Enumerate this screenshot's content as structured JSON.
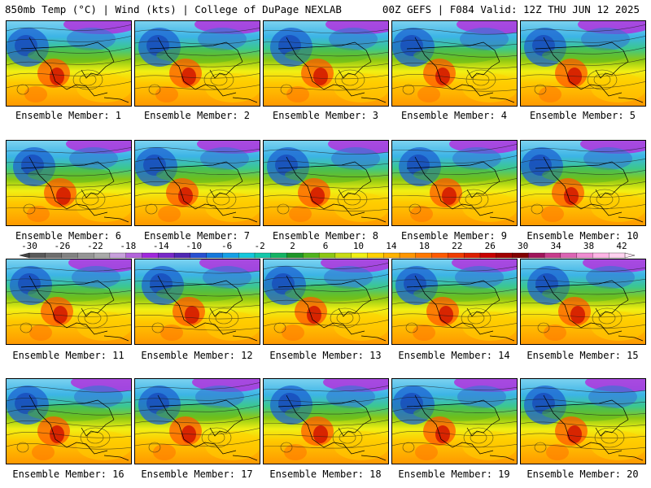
{
  "header": {
    "left": "850mb Temp (°C) | Wind (kts) | College of DuPage NEXLAB",
    "right": "00Z GEFS | F084 Valid: 12Z THU JUN 12 2025"
  },
  "panels": [
    {
      "label": "Ensemble Member: 1"
    },
    {
      "label": "Ensemble Member: 2"
    },
    {
      "label": "Ensemble Member: 3"
    },
    {
      "label": "Ensemble Member: 4"
    },
    {
      "label": "Ensemble Member: 5"
    },
    {
      "label": "Ensemble Member: 6"
    },
    {
      "label": "Ensemble Member: 7"
    },
    {
      "label": "Ensemble Member: 8"
    },
    {
      "label": "Ensemble Member: 9"
    },
    {
      "label": "Ensemble Member: 10"
    },
    {
      "label": "Ensemble Member: 11"
    },
    {
      "label": "Ensemble Member: 12"
    },
    {
      "label": "Ensemble Member: 13"
    },
    {
      "label": "Ensemble Member: 14"
    },
    {
      "label": "Ensemble Member: 15"
    },
    {
      "label": "Ensemble Member: 16"
    },
    {
      "label": "Ensemble Member: 17"
    },
    {
      "label": "Ensemble Member: 18"
    },
    {
      "label": "Ensemble Member: 19"
    },
    {
      "label": "Ensemble Member: 20"
    }
  ],
  "colorbar": {
    "labels": [
      "-30",
      "-26",
      "-22",
      "-18",
      "-14",
      "-10",
      "-6",
      "-2",
      "2",
      "6",
      "10",
      "14",
      "18",
      "22",
      "26",
      "30",
      "34",
      "38",
      "42"
    ],
    "colors": [
      "#5a5a5a",
      "#6e6e6e",
      "#828282",
      "#969696",
      "#aaaaaa",
      "#c8a0dc",
      "#b464dc",
      "#a028dc",
      "#7828c8",
      "#5028b4",
      "#2850d2",
      "#1478dc",
      "#14a0e6",
      "#14c8dc",
      "#14c8aa",
      "#14b464",
      "#1e9628",
      "#50b41e",
      "#8cc814",
      "#c8dc14",
      "#f0f014",
      "#ffd200",
      "#ffb400",
      "#ff9600",
      "#ff7800",
      "#ff5a00",
      "#f03c00",
      "#dc1e00",
      "#c80000",
      "#a00000",
      "#820000",
      "#a0145a",
      "#c83c8c",
      "#dc64b4",
      "#f08cd2",
      "#ffb4e6",
      "#ffd2f0"
    ]
  }
}
